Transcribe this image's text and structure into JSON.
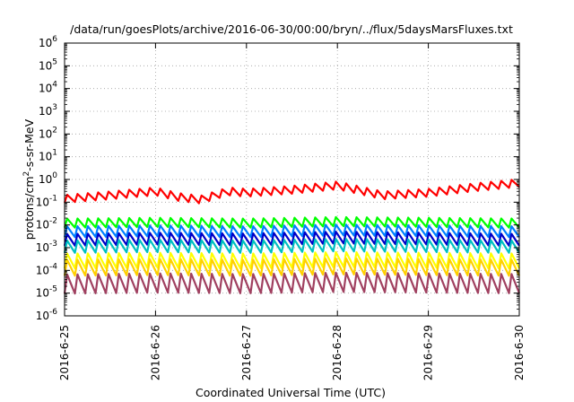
{
  "chart_data": {
    "type": "line",
    "title": "/data/run/goesPlots/archive/2016-06-30/00:00/bryn/../flux/5daysMarsFluxes.txt",
    "xlabel": "Coordinated Universal Time (UTC)",
    "ylabel_parts": [
      "protons/cm",
      "2",
      "-s-sr-MeV"
    ],
    "y_scale": "log",
    "ylim": [
      1e-06,
      1000000.0
    ],
    "y_ticks": [
      {
        "base": "10",
        "exp": "6"
      },
      {
        "base": "10",
        "exp": "5"
      },
      {
        "base": "10",
        "exp": "4"
      },
      {
        "base": "10",
        "exp": "3"
      },
      {
        "base": "10",
        "exp": "2"
      },
      {
        "base": "10",
        "exp": "1"
      },
      {
        "base": "10",
        "exp": "0"
      },
      {
        "base": "10",
        "exp": "-1"
      },
      {
        "base": "10",
        "exp": "-2"
      },
      {
        "base": "10",
        "exp": "-3"
      },
      {
        "base": "10",
        "exp": "-4"
      },
      {
        "base": "10",
        "exp": "-5"
      },
      {
        "base": "10",
        "exp": "-6"
      }
    ],
    "x_ticks": [
      "2016-6-25",
      "2016-6-26",
      "2016-6-27",
      "2016-6-28",
      "2016-6-29",
      "2016-6-30"
    ],
    "xlim": [
      "2016-6-25",
      "2016-6-30"
    ],
    "grid": true,
    "series": [
      {
        "color": "#ff0000",
        "base": [
          [
            0,
            0.14
          ],
          [
            0.5,
            0.2
          ],
          [
            1,
            0.3
          ],
          [
            1.25,
            0.17
          ],
          [
            1.5,
            0.13
          ],
          [
            1.8,
            0.3
          ],
          [
            2,
            0.26
          ],
          [
            2.5,
            0.35
          ],
          [
            3,
            0.55
          ],
          [
            3.5,
            0.2
          ],
          [
            4,
            0.26
          ],
          [
            4.5,
            0.45
          ],
          [
            5,
            0.7
          ]
        ],
        "amp": 2.2,
        "cycles": 44
      },
      {
        "color": "#00ff00",
        "base": [
          [
            0,
            0.012
          ],
          [
            1,
            0.013
          ],
          [
            2,
            0.012
          ],
          [
            3,
            0.014
          ],
          [
            4,
            0.013
          ],
          [
            5,
            0.012
          ]
        ],
        "amp": 2.5,
        "cycles": 44
      },
      {
        "color": "#0080ff",
        "base": [
          [
            0,
            0.005
          ],
          [
            1,
            0.0055
          ],
          [
            2,
            0.005
          ],
          [
            3,
            0.006
          ],
          [
            4,
            0.0055
          ],
          [
            5,
            0.005
          ]
        ],
        "amp": 3.0,
        "cycles": 44
      },
      {
        "color": "#0000c8",
        "base": [
          [
            0,
            0.0022
          ],
          [
            1,
            0.0025
          ],
          [
            2,
            0.0023
          ],
          [
            3,
            0.0028
          ],
          [
            4,
            0.0025
          ],
          [
            5,
            0.0022
          ]
        ],
        "amp": 3.3,
        "cycles": 44
      },
      {
        "color": "#00c0c0",
        "base": [
          [
            0,
            0.0011
          ],
          [
            1,
            0.0012
          ],
          [
            2,
            0.0011
          ],
          [
            3,
            0.0013
          ],
          [
            4,
            0.0012
          ],
          [
            5,
            0.0011
          ]
        ],
        "amp": 3.5,
        "cycles": 44
      },
      {
        "color": "#ffff00",
        "base": [
          [
            0,
            0.00026
          ],
          [
            1,
            0.00028
          ],
          [
            2,
            0.00026
          ],
          [
            3,
            0.0003
          ],
          [
            4,
            0.00028
          ],
          [
            5,
            0.00026
          ]
        ],
        "amp": 4.5,
        "cycles": 44
      },
      {
        "color": "#ffd000",
        "base": [
          [
            0,
            0.00013
          ],
          [
            1,
            0.00014
          ],
          [
            2,
            0.00013
          ],
          [
            3,
            0.00015
          ],
          [
            4,
            0.00014
          ],
          [
            5,
            0.00013
          ]
        ],
        "amp": 5.0,
        "cycles": 44
      },
      {
        "color": "#a04060",
        "base": [
          [
            0,
            2.5e-05
          ],
          [
            1,
            2.8e-05
          ],
          [
            2,
            2.6e-05
          ],
          [
            3,
            3e-05
          ],
          [
            4,
            2.8e-05
          ],
          [
            5,
            2.6e-05
          ]
        ],
        "amp": 7.0,
        "cycles": 44
      }
    ]
  }
}
